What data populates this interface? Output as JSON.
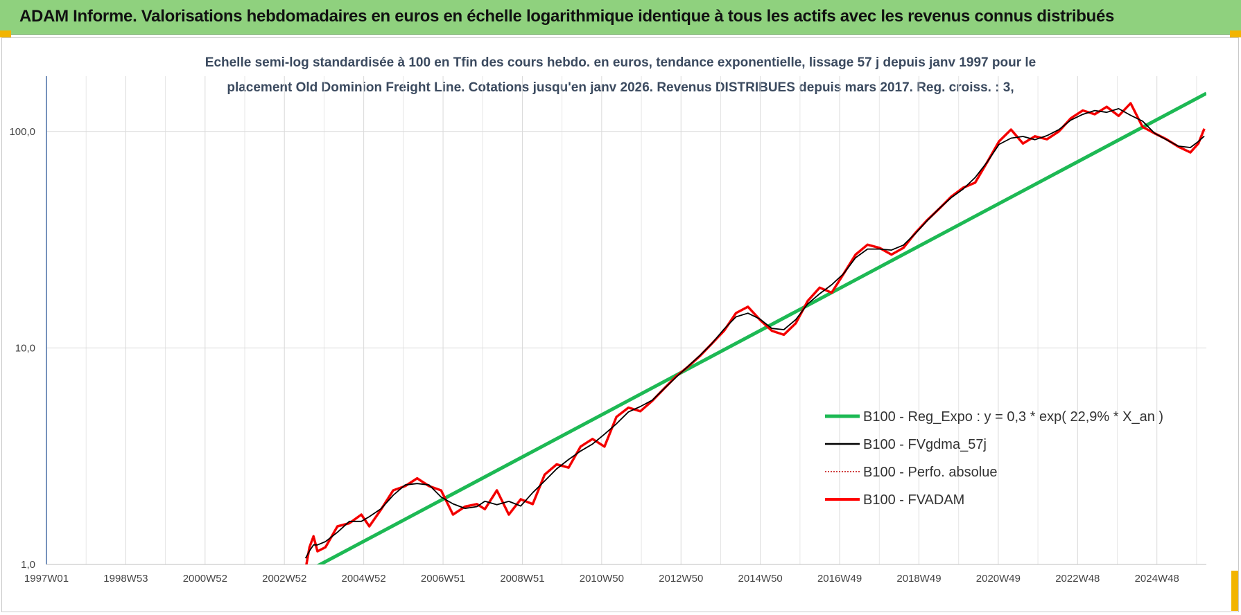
{
  "header": {
    "title": "ADAM Informe. Valorisations hebdomadaires en euros en échelle logarithmique identique à tous les actifs avec les revenus connus distribués"
  },
  "chart_data": {
    "type": "line",
    "subtitle_line1": "Echelle semi-log standardisée à 100 en Tfin des cours hebdo. en euros, tendance exponentielle, lissage 57 j depuis janv 1997 pour le",
    "subtitle_line2": "placement Old Dominion Freight Line. Cotations jusqu'en janv 2026. Revenus DISTRIBUES depuis mars 2017. Reg. croiss. : 3,",
    "y_scale": "log",
    "ylim": [
      1,
      180
    ],
    "y_ticks": [
      "1,0",
      "10,0",
      "100,0"
    ],
    "x_ticks": [
      "1997W01",
      "1998W53",
      "2000W52",
      "2002W52",
      "2004W52",
      "2006W51",
      "2008W51",
      "2010W50",
      "2012W50",
      "2014W50",
      "2016W49",
      "2018W49",
      "2020W49",
      "2022W48",
      "2024W48"
    ],
    "xlim": [
      1997.0,
      2026.1
    ],
    "legend_position": "right-bottom",
    "colors": {
      "reg": "#1db954",
      "fvgdma": "#000000",
      "perfo": "#c00000",
      "fvadam": "#ff0000",
      "axis": "#4a6fa5",
      "grid": "#d9d9d9"
    },
    "legend": [
      {
        "key": "reg",
        "label": "B100 - Reg_Expo : y = 0,3 * exp( 22,9% *  X_an )"
      },
      {
        "key": "fvgdma",
        "label": "B100 - FVgdma_57j"
      },
      {
        "key": "perfo",
        "label": "B100 - Perfo. absolue"
      },
      {
        "key": "fvadam",
        "label": "B100 - FVADAM"
      }
    ],
    "series": [
      {
        "key": "reg",
        "x": [
          2003.3,
          2026.1
        ],
        "y": [
          0.88,
          150
        ]
      },
      {
        "key": "fvadam",
        "x": [
          2003.5,
          2003.6,
          2003.7,
          2003.8,
          2004.0,
          2004.3,
          2004.6,
          2004.9,
          2005.1,
          2005.4,
          2005.7,
          2006.0,
          2006.3,
          2006.6,
          2006.9,
          2007.2,
          2007.5,
          2007.8,
          2008.0,
          2008.3,
          2008.6,
          2008.9,
          2009.2,
          2009.5,
          2009.8,
          2010.1,
          2010.4,
          2010.7,
          2011.0,
          2011.3,
          2011.6,
          2011.9,
          2012.2,
          2012.5,
          2012.8,
          2013.1,
          2013.4,
          2013.7,
          2014.0,
          2014.3,
          2014.6,
          2014.9,
          2015.2,
          2015.5,
          2015.8,
          2016.1,
          2016.4,
          2016.7,
          2017.0,
          2017.3,
          2017.6,
          2017.9,
          2018.2,
          2018.5,
          2018.8,
          2019.1,
          2019.4,
          2019.7,
          2020.0,
          2020.3,
          2020.6,
          2020.9,
          2021.2,
          2021.5,
          2021.8,
          2022.1,
          2022.4,
          2022.7,
          2023.0,
          2023.3,
          2023.6,
          2023.9,
          2024.2,
          2024.5,
          2024.8,
          2025.1,
          2025.4,
          2025.7,
          2025.9,
          2026.05
        ],
        "y": [
          0.95,
          1.2,
          1.35,
          1.15,
          1.2,
          1.5,
          1.55,
          1.7,
          1.5,
          1.8,
          2.2,
          2.3,
          2.5,
          2.3,
          2.2,
          1.7,
          1.85,
          1.9,
          1.8,
          2.2,
          1.7,
          2.0,
          1.9,
          2.6,
          2.9,
          2.8,
          3.5,
          3.8,
          3.5,
          4.8,
          5.3,
          5.1,
          5.7,
          6.5,
          7.4,
          8.2,
          9.2,
          10.5,
          12.0,
          14.5,
          15.5,
          13.5,
          12.0,
          11.5,
          13.0,
          16.5,
          19.0,
          18.0,
          22.0,
          27.0,
          30.0,
          29.0,
          27.0,
          29.0,
          34.0,
          39.0,
          44.0,
          50.0,
          55.0,
          58.0,
          72.0,
          90.0,
          102.0,
          88.0,
          95.0,
          92.0,
          100.0,
          115.0,
          125.0,
          120.0,
          130.0,
          118.0,
          135.0,
          105.0,
          98.0,
          92.0,
          85.0,
          80.0,
          88.0,
          103.0
        ]
      }
    ]
  }
}
